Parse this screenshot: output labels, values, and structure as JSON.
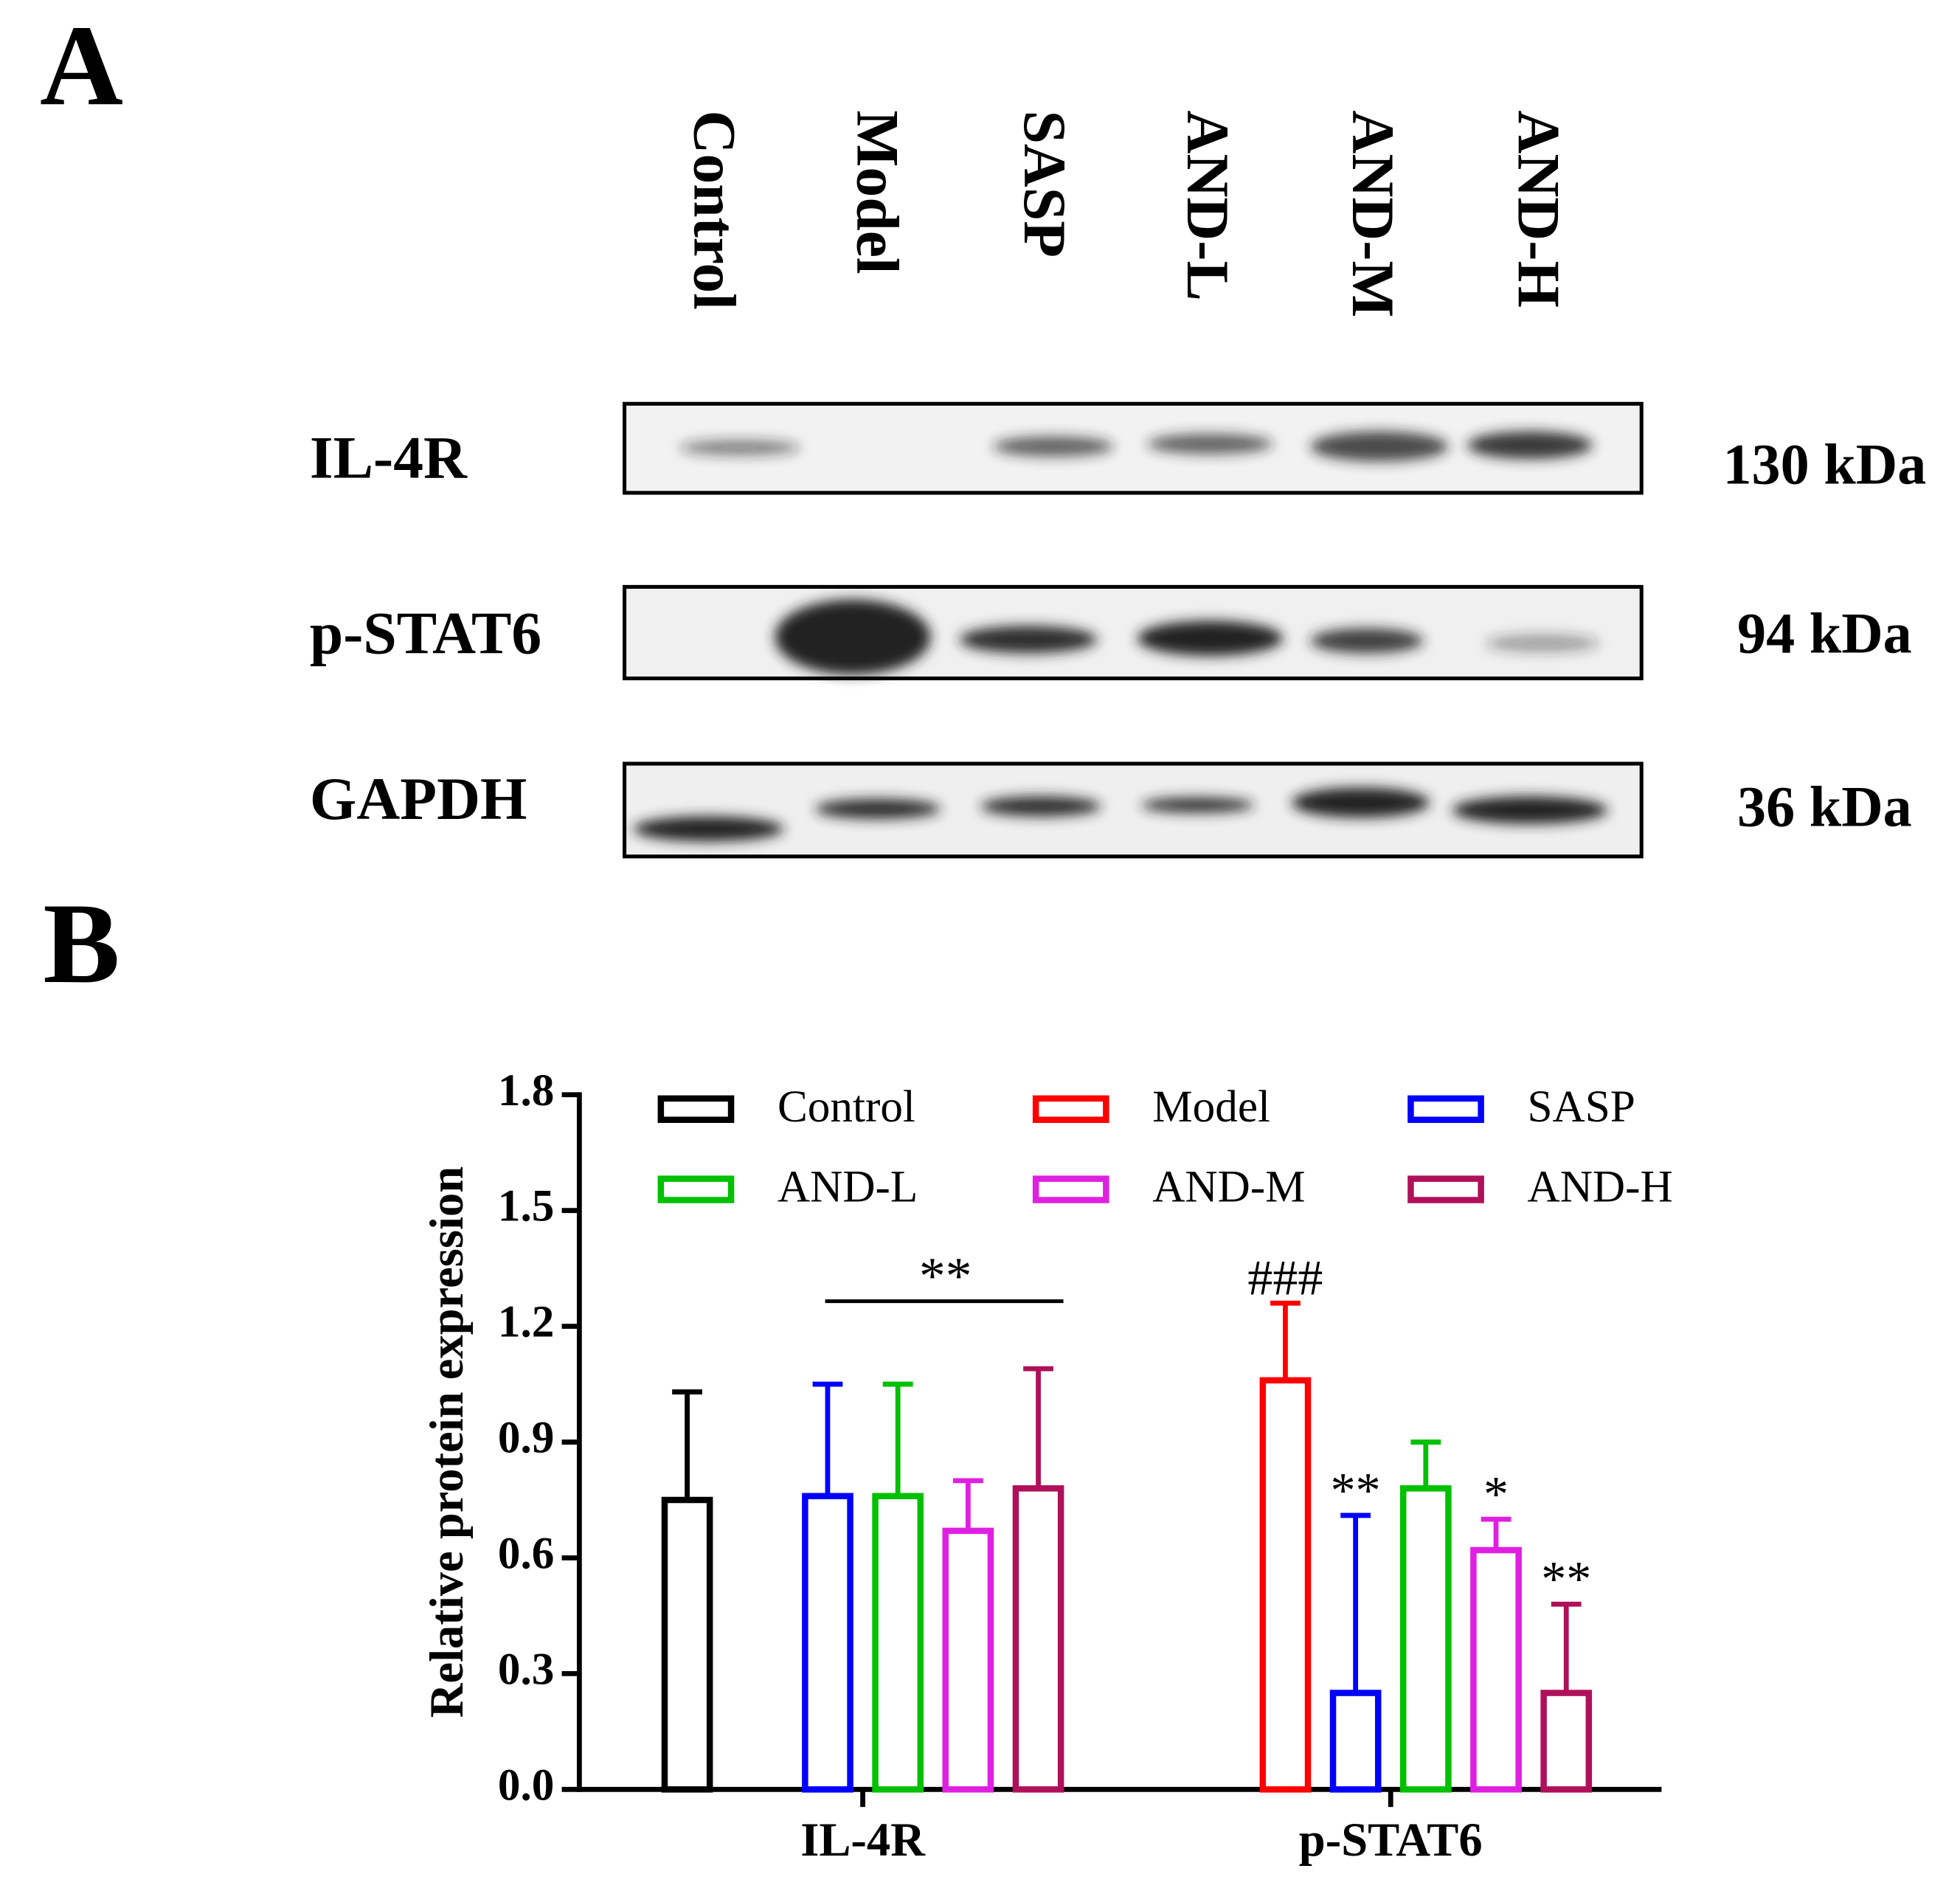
{
  "panel_labels": [
    "A",
    "B"
  ],
  "blot": {
    "lanes": [
      "Control",
      "Model",
      "SASP",
      "AND-L",
      "AND-M",
      "AND-H"
    ],
    "rows": [
      {
        "label": "IL-4R",
        "size": "130 kDa"
      },
      {
        "label": "p-STAT6",
        "size": "94 kDa"
      },
      {
        "label": "GAPDH",
        "size": "36 kDa"
      }
    ]
  },
  "chart_data": {
    "type": "bar",
    "y_label": "Relative protein expression",
    "categories": [
      "IL-4R",
      "p-STAT6"
    ],
    "ylim": [
      0,
      1.8
    ],
    "yticks": [
      {
        "value": 0,
        "label": "0.0"
      },
      0.3,
      0.6,
      0.9,
      1.2,
      1.5,
      1.8
    ],
    "bracket_label": "**",
    "series": [
      {
        "name": "Control",
        "color": "#000000",
        "values": [
          0.75,
          null
        ],
        "errors": [
          0.28,
          null
        ],
        "significance": [
          null,
          null
        ]
      },
      {
        "name": "Model",
        "color": "#ff0000",
        "values": [
          null,
          1.06
        ],
        "errors": [
          null,
          0.2
        ],
        "significance": [
          null,
          "###"
        ]
      },
      {
        "name": "SASP",
        "color": "#0000ff",
        "values": [
          0.76,
          0.25
        ],
        "errors": [
          0.29,
          0.46
        ],
        "significance": [
          null,
          "**"
        ]
      },
      {
        "name": "AND-L",
        "color": "#00c000",
        "values": [
          0.76,
          0.78
        ],
        "errors": [
          0.29,
          0.12
        ],
        "significance": [
          null,
          null
        ]
      },
      {
        "name": "AND-M",
        "color": "#e020e0",
        "values": [
          0.67,
          0.62
        ],
        "errors": [
          0.13,
          0.08
        ],
        "significance": [
          null,
          "*"
        ]
      },
      {
        "name": "AND-H",
        "color": "#b0105a",
        "values": [
          0.78,
          0.25
        ],
        "errors": [
          0.31,
          0.23
        ],
        "significance": [
          null,
          "**"
        ]
      }
    ]
  }
}
